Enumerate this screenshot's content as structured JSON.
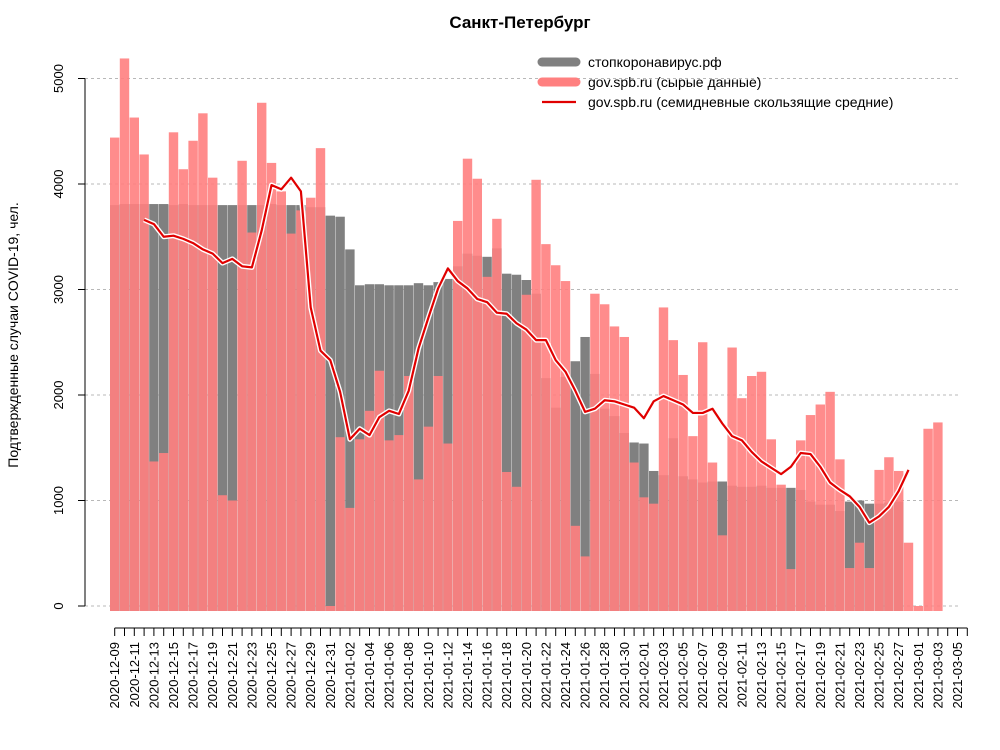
{
  "chart_data": {
    "type": "bar",
    "title": "Санкт-Петербург",
    "xlabel": "",
    "ylabel": "Подтвержденные случаи COVID-19, чел.",
    "ylim": [
      0,
      5400
    ],
    "yticks": [
      "0",
      "1000",
      "2000",
      "3000",
      "4000",
      "5000"
    ],
    "grid": true,
    "legend_position": "top-right",
    "start_date": "2020-12-09",
    "x_tick_labels": [
      "2020-12-09",
      "2020-12-11",
      "2020-12-13",
      "2020-12-15",
      "2020-12-17",
      "2020-12-19",
      "2020-12-21",
      "2020-12-23",
      "2020-12-25",
      "2020-12-27",
      "2020-12-29",
      "2020-12-31",
      "2021-01-02",
      "2021-01-04",
      "2021-01-06",
      "2021-01-08",
      "2021-01-10",
      "2021-01-12",
      "2021-01-14",
      "2021-01-16",
      "2021-01-18",
      "2021-01-20",
      "2021-01-22",
      "2021-01-24",
      "2021-01-26",
      "2021-01-28",
      "2021-01-30",
      "2021-02-01",
      "2021-02-03",
      "2021-02-05",
      "2021-02-07",
      "2021-02-09",
      "2021-02-11",
      "2021-02-13",
      "2021-02-15",
      "2021-02-17",
      "2021-02-19",
      "2021-02-21",
      "2021-02-23",
      "2021-02-25",
      "2021-02-27",
      "2021-03-01",
      "2021-03-03",
      "2021-03-05"
    ],
    "series": [
      {
        "name": "стопкоронавирус.рф",
        "kind": "bar",
        "color": "#808080",
        "values": [
          3800,
          3810,
          3810,
          3810,
          3810,
          3810,
          3800,
          3810,
          3800,
          3800,
          3800,
          3800,
          3800,
          3800,
          3800,
          3800,
          3810,
          3800,
          3800,
          3800,
          3780,
          3780,
          3700,
          3690,
          3380,
          3040,
          3050,
          3050,
          3040,
          3040,
          3040,
          3060,
          3040,
          3070,
          3100,
          3220,
          3340,
          3320,
          3310,
          3390,
          3150,
          3140,
          3090,
          2960,
          2160,
          1880,
          2170,
          2320,
          2550,
          2200,
          1870,
          1800,
          1640,
          1550,
          1540,
          1280,
          1240,
          1590,
          1230,
          1200,
          1170,
          1180,
          1180,
          1140,
          1130,
          1130,
          1140,
          1120,
          1120,
          1120,
          1100,
          990,
          960,
          960,
          900,
          990,
          1000,
          970,
          970,
          980,
          990
        ]
      },
      {
        "name": "gov.spb.ru (сырые данные)",
        "kind": "bar",
        "color": "#ff8080",
        "values": [
          4440,
          5190,
          4630,
          4280,
          1370,
          1450,
          4490,
          4140,
          4410,
          4670,
          4060,
          1050,
          1000,
          4220,
          3540,
          4770,
          4200,
          3930,
          3530,
          3750,
          3870,
          4340,
          0,
          1600,
          930,
          1580,
          1850,
          2230,
          1570,
          1620,
          2180,
          1200,
          1700,
          2180,
          1540,
          3650,
          4240,
          4050,
          3120,
          3670,
          1270,
          1130,
          2950,
          4040,
          3430,
          3230,
          3080,
          760,
          470,
          2960,
          2860,
          2650,
          2550,
          1360,
          1030,
          970,
          2830,
          2520,
          2190,
          1610,
          2500,
          1360,
          670,
          2450,
          1970,
          2180,
          2220,
          1580,
          1150,
          350,
          1570,
          1810,
          1910,
          2030,
          1390,
          360,
          600,
          360,
          1290,
          1410,
          1280,
          600,
          0,
          1680,
          1740
        ]
      },
      {
        "name": "gov.spb.ru (семидневные скользящие средние)",
        "kind": "line",
        "color": "#e00000",
        "start_index": 3,
        "values": [
          3660,
          3620,
          3500,
          3510,
          3480,
          3440,
          3380,
          3340,
          3250,
          3290,
          3220,
          3210,
          3560,
          3990,
          3950,
          4060,
          3930,
          2830,
          2420,
          2330,
          2030,
          1580,
          1680,
          1620,
          1790,
          1850,
          1820,
          2040,
          2440,
          2730,
          3010,
          3200,
          3080,
          3010,
          2910,
          2880,
          2780,
          2770,
          2680,
          2620,
          2520,
          2520,
          2330,
          2220,
          2040,
          1840,
          1870,
          1950,
          1940,
          1910,
          1880,
          1780,
          1940,
          1990,
          1950,
          1910,
          1830,
          1830,
          1870,
          1730,
          1610,
          1570,
          1460,
          1370,
          1310,
          1250,
          1320,
          1450,
          1440,
          1320,
          1170,
          1100,
          1040,
          940,
          790,
          850,
          940,
          1090,
          1290
        ]
      }
    ]
  }
}
